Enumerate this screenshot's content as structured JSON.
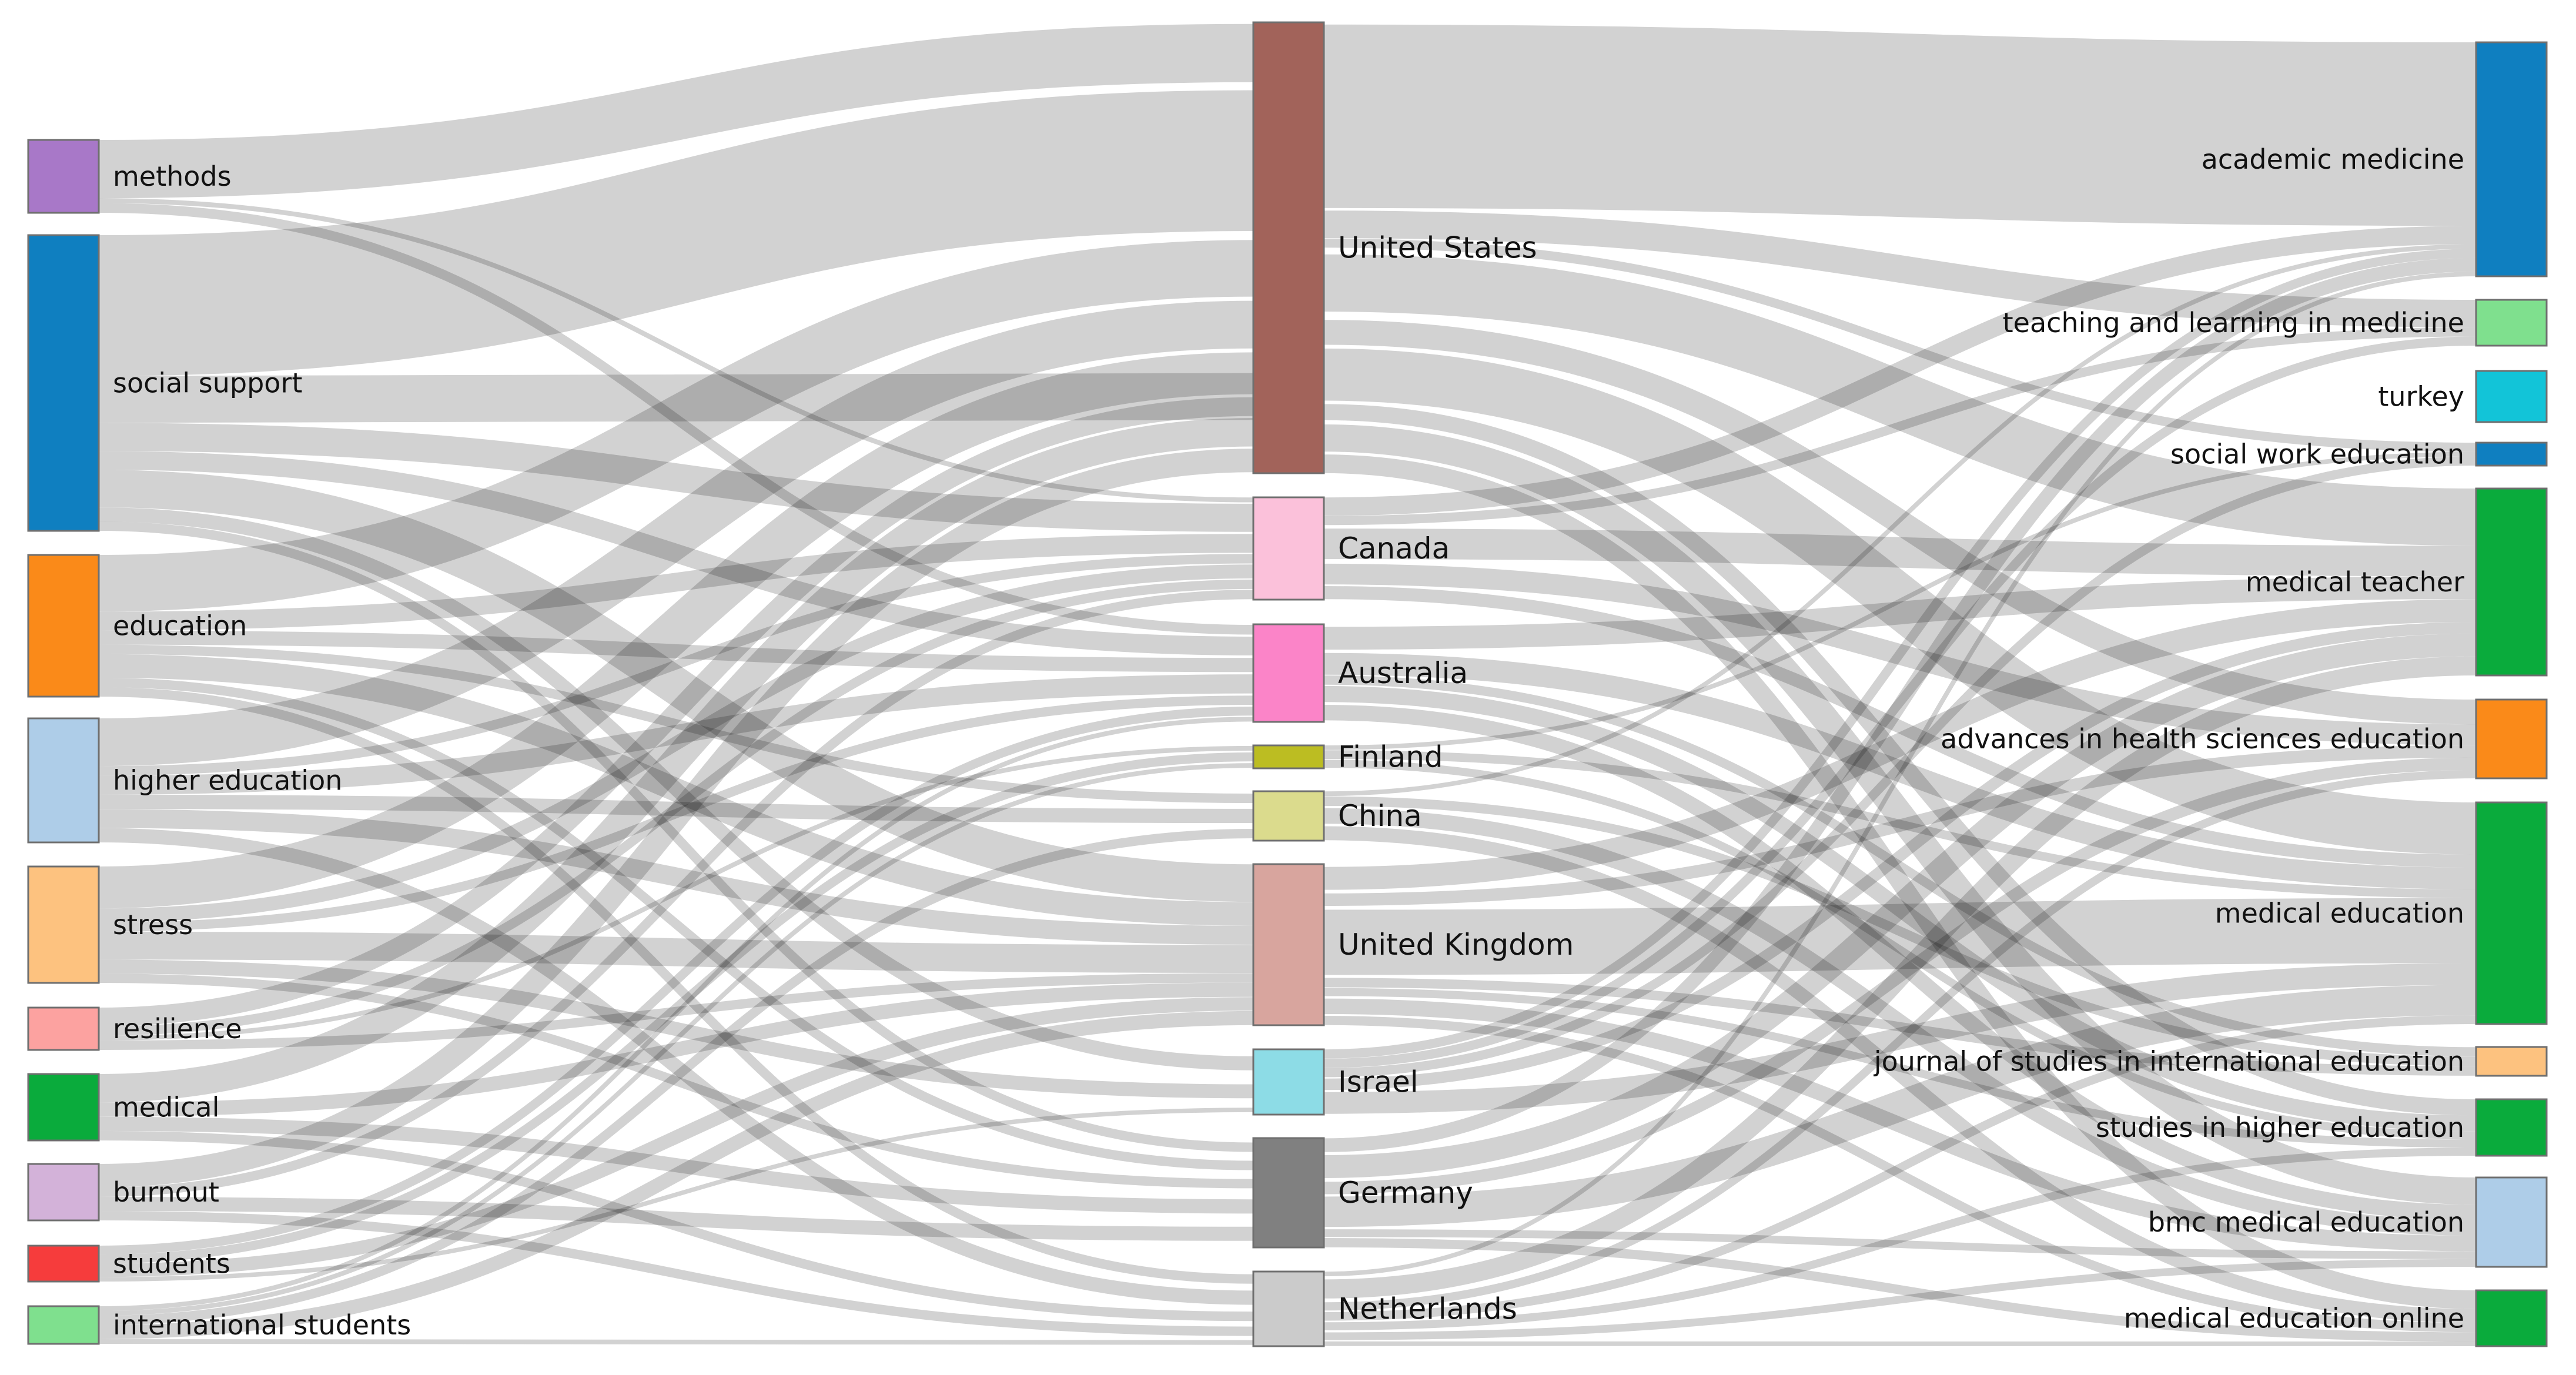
{
  "sankey": {
    "left_nodes": [
      {
        "id": "methods",
        "label": "methods",
        "color": "#a878c8",
        "value": 15
      },
      {
        "id": "social_support",
        "label": "social support",
        "color": "#0f7fc0",
        "value": 63
      },
      {
        "id": "education",
        "label": "education",
        "color": "#fa8a19",
        "value": 30
      },
      {
        "id": "higher_education",
        "label": "higher education",
        "color": "#aecde8",
        "value": 26
      },
      {
        "id": "stress",
        "label": "stress",
        "color": "#fdc27f",
        "value": 25
      },
      {
        "id": "resilience",
        "label": "resilience",
        "color": "#fca2a0",
        "value": 9
      },
      {
        "id": "medical",
        "label": "medical",
        "color": "#0aab3c",
        "value": 14
      },
      {
        "id": "burnout",
        "label": "burnout",
        "color": "#d3b2d9",
        "value": 12
      },
      {
        "id": "students",
        "label": "students",
        "color": "#f63c3c",
        "value": 8
      },
      {
        "id": "international_students",
        "label": "international students",
        "color": "#7fe08e",
        "value": 8
      }
    ],
    "middle_nodes": [
      {
        "id": "united_states",
        "label": "United States",
        "color": "#a2635a",
        "value": 96
      },
      {
        "id": "canada",
        "label": "Canada",
        "color": "#fbc1da",
        "value": 22
      },
      {
        "id": "australia",
        "label": "Australia",
        "color": "#fb84c8",
        "value": 21
      },
      {
        "id": "finland",
        "label": "Finland",
        "color": "#bcbd22",
        "value": 5
      },
      {
        "id": "china",
        "label": "China",
        "color": "#dbdb8d",
        "value": 10
      },
      {
        "id": "united_kingdom",
        "label": "United Kingdom",
        "color": "#d8a59e",
        "value": 34
      },
      {
        "id": "israel",
        "label": "Israel",
        "color": "#8ddce6",
        "value": 14
      },
      {
        "id": "germany",
        "label": "Germany",
        "color": "#808080",
        "value": 23
      },
      {
        "id": "netherlands",
        "label": "Netherlands",
        "color": "#cbcbcb",
        "value": 15
      }
    ],
    "right_nodes": [
      {
        "id": "academic_medicine",
        "label": "academic medicine",
        "color": "#0f7fc0",
        "value": 50
      },
      {
        "id": "teaching_learning",
        "label": "teaching and learning in medicine",
        "color": "#7fe08e",
        "value": 10
      },
      {
        "id": "turkey",
        "label": "turkey",
        "color": "#12c4d8",
        "value": 10
      },
      {
        "id": "social_work_education",
        "label": "social work education",
        "color": "#0f7fc0",
        "value": 5
      },
      {
        "id": "medical_teacher",
        "label": "medical teacher",
        "color": "#0aab3c",
        "value": 40
      },
      {
        "id": "advances_hse",
        "label": "advances in health sciences education",
        "color": "#fa8a19",
        "value": 17
      },
      {
        "id": "medical_education",
        "label": "medical education",
        "color": "#0aab3c",
        "value": 47
      },
      {
        "id": "jsie",
        "label": "journal of studies in international education",
        "color": "#fdc27f",
        "value": 6
      },
      {
        "id": "studies_higher_education",
        "label": "studies in higher education",
        "color": "#0aab3c",
        "value": 12
      },
      {
        "id": "bmc_medical_education",
        "label": "bmc medical education",
        "color": "#aecde8",
        "value": 19
      },
      {
        "id": "medical_education_online",
        "label": "medical education online",
        "color": "#0aab3c",
        "value": 12
      }
    ],
    "links_left": [
      [
        "methods",
        "united_states",
        12
      ],
      [
        "methods",
        "australia",
        2
      ],
      [
        "methods",
        "canada",
        1
      ],
      [
        "social_support",
        "united_states",
        30
      ],
      [
        "social_support",
        "turkey",
        10
      ],
      [
        "social_support",
        "canada",
        6
      ],
      [
        "social_support",
        "united_kingdom",
        8
      ],
      [
        "social_support",
        "australia",
        4
      ],
      [
        "social_support",
        "israel",
        3
      ],
      [
        "social_support",
        "germany",
        2
      ],
      [
        "education",
        "united_states",
        12
      ],
      [
        "education",
        "canada",
        4
      ],
      [
        "education",
        "australia",
        3
      ],
      [
        "education",
        "united_kingdom",
        5
      ],
      [
        "education",
        "china",
        2
      ],
      [
        "education",
        "germany",
        2
      ],
      [
        "education",
        "netherlands",
        2
      ],
      [
        "higher_education",
        "united_states",
        10
      ],
      [
        "higher_education",
        "australia",
        4
      ],
      [
        "higher_education",
        "united_kingdom",
        4
      ],
      [
        "higher_education",
        "china",
        3
      ],
      [
        "higher_education",
        "canada",
        2
      ],
      [
        "higher_education",
        "netherlands",
        3
      ],
      [
        "stress",
        "united_states",
        9
      ],
      [
        "stress",
        "united_kingdom",
        6
      ],
      [
        "stress",
        "canada",
        3
      ],
      [
        "stress",
        "israel",
        3
      ],
      [
        "stress",
        "germany",
        2
      ],
      [
        "stress",
        "australia",
        2
      ],
      [
        "resilience",
        "united_states",
        4
      ],
      [
        "resilience",
        "united_kingdom",
        2
      ],
      [
        "resilience",
        "canada",
        2
      ],
      [
        "resilience",
        "finland",
        1
      ],
      [
        "medical",
        "united_states",
        6
      ],
      [
        "medical",
        "germany",
        3
      ],
      [
        "medical",
        "united_kingdom",
        3
      ],
      [
        "medical",
        "netherlands",
        2
      ],
      [
        "burnout",
        "united_states",
        5
      ],
      [
        "burnout",
        "germany",
        3
      ],
      [
        "burnout",
        "netherlands",
        2
      ],
      [
        "burnout",
        "canada",
        2
      ],
      [
        "students",
        "united_kingdom",
        3
      ],
      [
        "students",
        "australia",
        2
      ],
      [
        "students",
        "finland",
        2
      ],
      [
        "students",
        "israel",
        1
      ],
      [
        "international_students",
        "united_kingdom",
        3
      ],
      [
        "international_students",
        "china",
        2
      ],
      [
        "international_students",
        "australia",
        1
      ],
      [
        "international_students",
        "finland",
        1
      ],
      [
        "international_students",
        "netherlands",
        1
      ]
    ],
    "links_right": [
      [
        "united_states",
        "academic_medicine",
        40
      ],
      [
        "united_states",
        "medical_teacher",
        15
      ],
      [
        "united_states",
        "medical_education",
        12
      ],
      [
        "united_states",
        "advances_hse",
        6
      ],
      [
        "united_states",
        "teaching_learning",
        6
      ],
      [
        "united_states",
        "bmc_medical_education",
        7
      ],
      [
        "united_states",
        "medical_education_online",
        4
      ],
      [
        "united_states",
        "studies_higher_education",
        4
      ],
      [
        "united_states",
        "social_work_education",
        2
      ],
      [
        "canada",
        "medical_teacher",
        8
      ],
      [
        "canada",
        "academic_medicine",
        4
      ],
      [
        "canada",
        "advances_hse",
        5
      ],
      [
        "canada",
        "medical_education",
        3
      ],
      [
        "canada",
        "teaching_learning",
        2
      ],
      [
        "australia",
        "medical_teacher",
        6
      ],
      [
        "australia",
        "medical_education",
        5
      ],
      [
        "australia",
        "studies_higher_education",
        4
      ],
      [
        "australia",
        "bmc_medical_education",
        4
      ],
      [
        "australia",
        "jsie",
        2
      ],
      [
        "finland",
        "studies_higher_education",
        2
      ],
      [
        "finland",
        "medical_education",
        2
      ],
      [
        "finland",
        "social_work_education",
        1
      ],
      [
        "china",
        "bmc_medical_education",
        4
      ],
      [
        "china",
        "medical_education_online",
        3
      ],
      [
        "china",
        "jsie",
        2
      ],
      [
        "china",
        "academic_medicine",
        1
      ],
      [
        "united_kingdom",
        "medical_education",
        15
      ],
      [
        "united_kingdom",
        "medical_teacher",
        6
      ],
      [
        "united_kingdom",
        "advances_hse",
        3
      ],
      [
        "united_kingdom",
        "studies_higher_education",
        2
      ],
      [
        "united_kingdom",
        "jsie",
        2
      ],
      [
        "united_kingdom",
        "bmc_medical_education",
        4
      ],
      [
        "united_kingdom",
        "medical_education_online",
        2
      ],
      [
        "israel",
        "medical_education",
        5
      ],
      [
        "israel",
        "academic_medicine",
        2
      ],
      [
        "israel",
        "teaching_learning",
        2
      ],
      [
        "israel",
        "social_work_education",
        2
      ],
      [
        "israel",
        "medical_teacher",
        3
      ],
      [
        "germany",
        "medical_education",
        7
      ],
      [
        "germany",
        "medical_teacher",
        6
      ],
      [
        "germany",
        "academic_medicine",
        3
      ],
      [
        "germany",
        "advances_hse",
        3
      ],
      [
        "germany",
        "bmc_medical_education",
        2
      ],
      [
        "germany",
        "medical_education_online",
        2
      ],
      [
        "netherlands",
        "medical_teacher",
        5
      ],
      [
        "netherlands",
        "advances_hse",
        2
      ],
      [
        "netherlands",
        "bmc_medical_education",
        2
      ],
      [
        "netherlands",
        "medical_education_online",
        1
      ],
      [
        "netherlands",
        "academic_medicine",
        1
      ],
      [
        "netherlands",
        "studies_higher_education",
        2
      ],
      [
        "netherlands",
        "medical_education",
        2
      ]
    ]
  }
}
